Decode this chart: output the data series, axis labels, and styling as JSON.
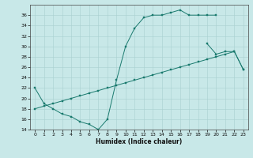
{
  "xlabel": "Humidex (Indice chaleur)",
  "xlim": [
    -0.5,
    23.5
  ],
  "ylim": [
    14,
    38
  ],
  "yticks": [
    14,
    16,
    18,
    20,
    22,
    24,
    26,
    28,
    30,
    32,
    34,
    36
  ],
  "xticks": [
    0,
    1,
    2,
    3,
    4,
    5,
    6,
    7,
    8,
    9,
    10,
    11,
    12,
    13,
    14,
    15,
    16,
    17,
    18,
    19,
    20,
    21,
    22,
    23
  ],
  "color": "#1a7a6e",
  "bg_color": "#c8e8e8",
  "line1_y": [
    22,
    19,
    18,
    17,
    16.5,
    15.5,
    15,
    14,
    16,
    23.5,
    30,
    33.5,
    35.5,
    36,
    36,
    36.5,
    37,
    36,
    36,
    36,
    36,
    null,
    null,
    null
  ],
  "line2_y": [
    null,
    null,
    null,
    null,
    null,
    null,
    null,
    null,
    null,
    null,
    null,
    null,
    null,
    null,
    null,
    null,
    null,
    null,
    null,
    30.5,
    28.5,
    29,
    29,
    25.5
  ],
  "line3_y": [
    18,
    18.5,
    19,
    19.5,
    20,
    20.5,
    21,
    21.5,
    22,
    22.5,
    23,
    23.5,
    24,
    24.5,
    25,
    25.5,
    26,
    26.5,
    27,
    27.5,
    28,
    28.5,
    29,
    25.5
  ]
}
